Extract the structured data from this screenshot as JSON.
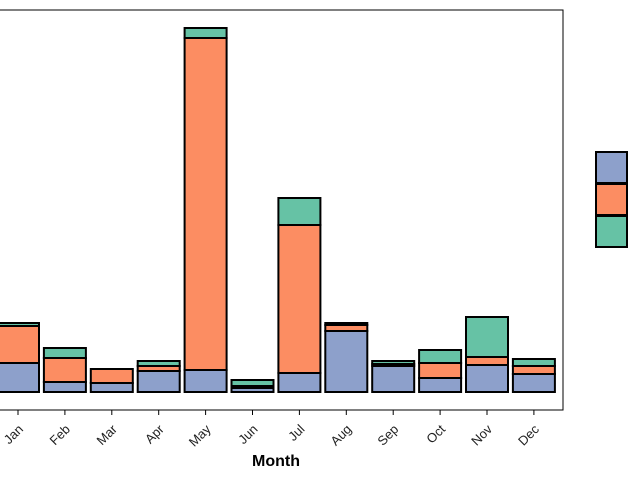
{
  "chart_data": {
    "type": "bar",
    "stacked": true,
    "title": "",
    "xlabel": "Month",
    "ylabel": "",
    "categories": [
      "Jan",
      "Feb",
      "Mar",
      "Apr",
      "May",
      "Jun",
      "Jul",
      "Aug",
      "Sep",
      "Oct",
      "Nov",
      "Dec"
    ],
    "ylim": [
      -8,
      370
    ],
    "series": [
      {
        "color": "#8DA0CB",
        "values": [
          29,
          10,
          9,
          21,
          22,
          4,
          19,
          61,
          26,
          14,
          27,
          18
        ]
      },
      {
        "color": "#FC8D62",
        "values": [
          37,
          24,
          14,
          5,
          332,
          2,
          148,
          6,
          2,
          15,
          8,
          8
        ]
      },
      {
        "color": "#66C2A5",
        "values": [
          3,
          10,
          0,
          5,
          10,
          6,
          27,
          2,
          3,
          13,
          40,
          7
        ]
      }
    ],
    "grid": false,
    "legend_position": "right"
  }
}
